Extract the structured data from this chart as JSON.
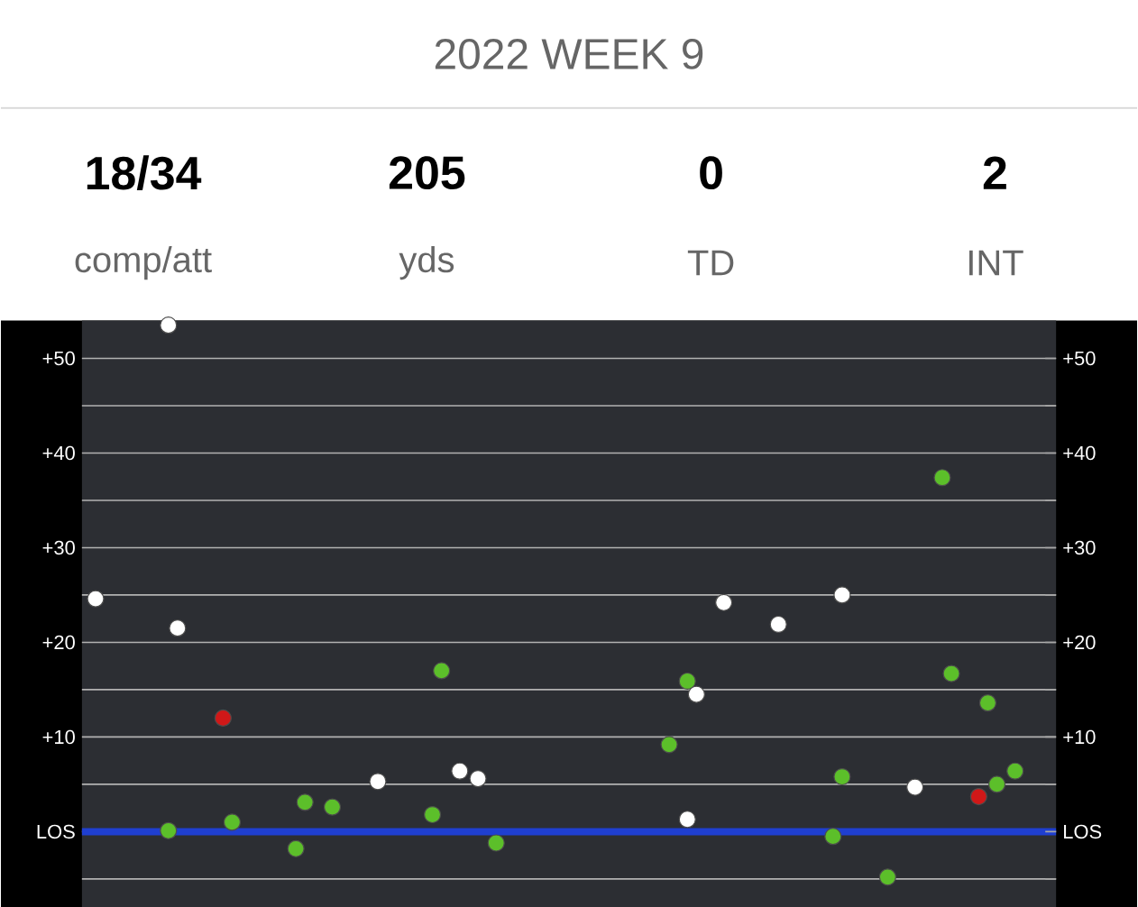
{
  "chart_data": [
    {
      "type": "other",
      "title": "2022 WEEK 9",
      "annotations": [
        "18/34",
        "comp/att",
        "205",
        "yds",
        "0",
        "TD",
        "2",
        "INT"
      ]
    },
    {
      "type": "scatter",
      "categories": [
        null,
        null,
        null,
        null,
        null,
        null,
        null,
        null,
        null,
        null,
        null,
        null,
        null,
        null,
        null,
        null,
        null,
        null,
        null,
        null,
        null,
        null,
        null,
        null,
        null,
        null,
        null,
        null,
        null,
        null,
        null,
        null,
        null,
        null,
        null,
        null,
        null,
        null,
        null,
        null,
        null,
        null,
        null,
        null,
        null,
        null,
        null,
        null,
        null,
        null,
        null,
        null,
        null,
        null,
        null,
        null,
        null,
        null,
        null,
        null,
        null,
        null,
        null,
        null,
        null,
        null,
        null,
        null,
        null,
        null,
        null,
        null,
        null,
        null,
        null,
        null,
        null,
        null,
        null,
        null,
        null,
        null,
        null,
        null,
        null,
        null,
        null,
        null,
        null,
        null,
        null,
        null,
        null,
        null,
        null,
        null,
        null,
        null,
        null,
        null,
        null,
        null,
        null,
        null,
        null,
        null,
        null
      ],
      "ylim": [
        -8,
        54
      ],
      "yticks": [
        {
          "value": -5,
          "label": null
        },
        {
          "value": 0,
          "label": "LOS"
        },
        {
          "value": 5,
          "label": null
        },
        {
          "value": 10,
          "label": "+10"
        },
        {
          "value": 15,
          "label": null
        },
        {
          "value": 20,
          "label": "+20"
        },
        {
          "value": 25,
          "label": null
        },
        {
          "value": 30,
          "label": "+30"
        },
        {
          "value": 35,
          "label": null
        },
        {
          "value": 40,
          "label": "+40"
        },
        {
          "value": 45,
          "label": null
        },
        {
          "value": 50,
          "label": "+50"
        }
      ],
      "y2lim": [
        -8,
        54
      ],
      "y2ticks": [
        {
          "value": -5,
          "label": null
        },
        {
          "value": 0,
          "label": "LOS"
        },
        {
          "value": 5,
          "label": null
        },
        {
          "value": 10,
          "label": "+10"
        },
        {
          "value": 15,
          "label": null
        },
        {
          "value": 20,
          "label": "+20"
        },
        {
          "value": 25,
          "label": null
        },
        {
          "value": 30,
          "label": "+30"
        },
        {
          "value": 35,
          "label": null
        },
        {
          "value": 40,
          "label": "+40"
        },
        {
          "value": 45,
          "label": null
        },
        {
          "value": 50,
          "label": "+50"
        }
      ],
      "tick_labels": "y",
      "grid": "y",
      "marker": "circle",
      "ref_lines": [
        {
          "axis": "y",
          "value": 0,
          "color": "#1f3fd0"
        }
      ],
      "series": [
        {
          "color": "#5cbf2a",
          "values": [
            null,
            null,
            null,
            null,
            null,
            null,
            null,
            null,
            null,
            0.1,
            null,
            null,
            null,
            null,
            null,
            null,
            1.0,
            null,
            null,
            null,
            null,
            null,
            null,
            -1.8,
            3.1,
            null,
            null,
            2.6,
            null,
            null,
            null,
            null,
            null,
            null,
            null,
            null,
            null,
            null,
            1.8,
            17.0,
            null,
            null,
            null,
            null,
            null,
            -1.2,
            null,
            null,
            null,
            null,
            null,
            null,
            null,
            null,
            null,
            null,
            null,
            null,
            null,
            null,
            null,
            null,
            null,
            null,
            9.2,
            null,
            15.9,
            null,
            null,
            null,
            null,
            null,
            null,
            null,
            null,
            null,
            null,
            null,
            null,
            null,
            null,
            null,
            -0.5,
            5.8,
            null,
            null,
            null,
            null,
            -4.8,
            null,
            null,
            null,
            null,
            null,
            37.4,
            16.7,
            null,
            null,
            null,
            13.6,
            5.0,
            null,
            6.4,
            null,
            null,
            null,
            null
          ]
        },
        {
          "color": "#ffffff",
          "values": [
            null,
            24.6,
            null,
            null,
            null,
            null,
            null,
            null,
            null,
            53.5,
            21.5,
            null,
            null,
            null,
            null,
            null,
            null,
            null,
            null,
            null,
            null,
            null,
            null,
            null,
            null,
            null,
            null,
            null,
            null,
            null,
            null,
            null,
            5.3,
            null,
            null,
            null,
            null,
            null,
            null,
            null,
            null,
            6.4,
            null,
            5.6,
            null,
            null,
            null,
            null,
            null,
            null,
            null,
            null,
            null,
            null,
            null,
            null,
            null,
            null,
            null,
            null,
            null,
            null,
            null,
            null,
            null,
            null,
            1.3,
            14.5,
            null,
            null,
            24.2,
            null,
            null,
            null,
            null,
            null,
            21.9,
            null,
            null,
            null,
            null,
            null,
            null,
            25.0,
            null,
            null,
            null,
            null,
            null,
            null,
            null,
            4.7,
            null,
            null,
            null,
            null,
            null,
            null,
            null,
            null,
            null,
            null,
            null,
            null,
            null,
            null,
            null
          ]
        },
        {
          "color": "#d01818",
          "values": [
            null,
            null,
            null,
            null,
            null,
            null,
            null,
            null,
            null,
            null,
            null,
            null,
            null,
            null,
            null,
            12.0,
            null,
            null,
            null,
            null,
            null,
            null,
            null,
            null,
            null,
            null,
            null,
            null,
            null,
            null,
            null,
            null,
            null,
            null,
            null,
            null,
            null,
            null,
            null,
            null,
            null,
            null,
            null,
            null,
            null,
            null,
            null,
            null,
            null,
            null,
            null,
            null,
            null,
            null,
            null,
            null,
            null,
            null,
            null,
            null,
            null,
            null,
            null,
            null,
            null,
            null,
            null,
            null,
            null,
            null,
            null,
            null,
            null,
            null,
            null,
            null,
            null,
            null,
            null,
            null,
            null,
            null,
            null,
            null,
            null,
            null,
            null,
            null,
            null,
            null,
            null,
            null,
            null,
            null,
            null,
            null,
            null,
            null,
            3.7,
            null,
            null,
            null,
            null,
            null,
            null,
            null,
            null
          ]
        }
      ]
    }
  ]
}
